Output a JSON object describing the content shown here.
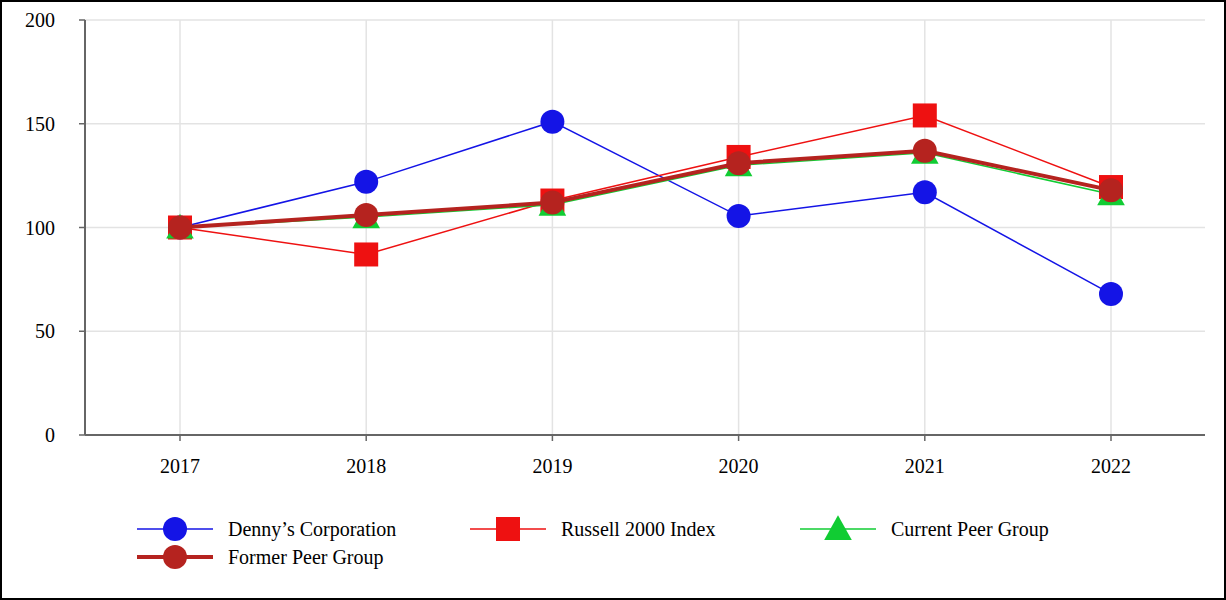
{
  "chart_data": {
    "type": "line",
    "categories": [
      "2017",
      "2018",
      "2019",
      "2020",
      "2021",
      "2022"
    ],
    "series": [
      {
        "name": "Denny’s Corporation",
        "color": "#1414e6",
        "marker": "circle",
        "values": [
          100,
          122,
          151,
          105.5,
          117,
          68
        ]
      },
      {
        "name": "Russell 2000 Index",
        "color": "#ee1111",
        "marker": "square",
        "values": [
          100,
          87,
          113,
          134,
          154,
          119.5
        ]
      },
      {
        "name": "Current Peer Group",
        "color": "#11cc33",
        "marker": "triangle",
        "values": [
          100,
          105,
          111,
          130,
          136,
          116
        ]
      },
      {
        "name": "Former Peer Group",
        "color": "#b5231f",
        "marker": "circle",
        "values": [
          100,
          106,
          112,
          131,
          137,
          118
        ]
      }
    ],
    "ylim": [
      0,
      200
    ],
    "yticks": [
      0,
      50,
      100,
      150,
      200
    ],
    "grid": true,
    "legend": "bottom"
  }
}
